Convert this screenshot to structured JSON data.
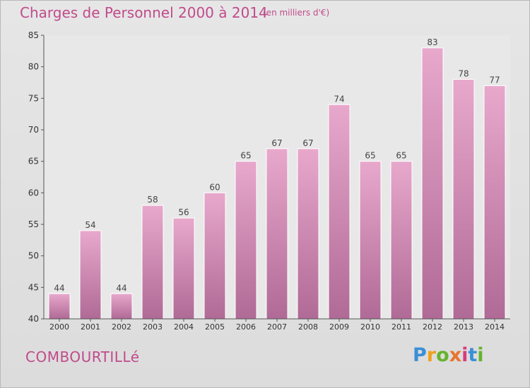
{
  "header": {
    "title": "Charges de Personnel 2000 à 2014",
    "subtitle": "(en milliers d'€)"
  },
  "commune": "COMBOURTILLé",
  "logo": {
    "letters": [
      "P",
      "r",
      "o",
      "x",
      "i",
      "t",
      "i"
    ],
    "colors": [
      "#3a8fd6",
      "#f0a020",
      "#66b32e",
      "#e8742c",
      "#d63c7c",
      "#3a8fd6",
      "#66b32e"
    ]
  },
  "colors": {
    "accent": "#c04b8b",
    "bar_top": "#e8a8cc",
    "bar_bottom": "#b06a96"
  },
  "chart_data": {
    "type": "bar",
    "categories": [
      "2000",
      "2001",
      "2002",
      "2003",
      "2004",
      "2005",
      "2006",
      "2007",
      "2008",
      "2009",
      "2010",
      "2011",
      "2012",
      "2013",
      "2014"
    ],
    "values": [
      44,
      54,
      44,
      58,
      56,
      60,
      65,
      67,
      67,
      74,
      65,
      65,
      83,
      78,
      77
    ],
    "ylim": [
      40,
      85
    ],
    "yticks": [
      40,
      45,
      50,
      55,
      60,
      65,
      70,
      75,
      80,
      85
    ],
    "grid": false,
    "legend": "none"
  }
}
